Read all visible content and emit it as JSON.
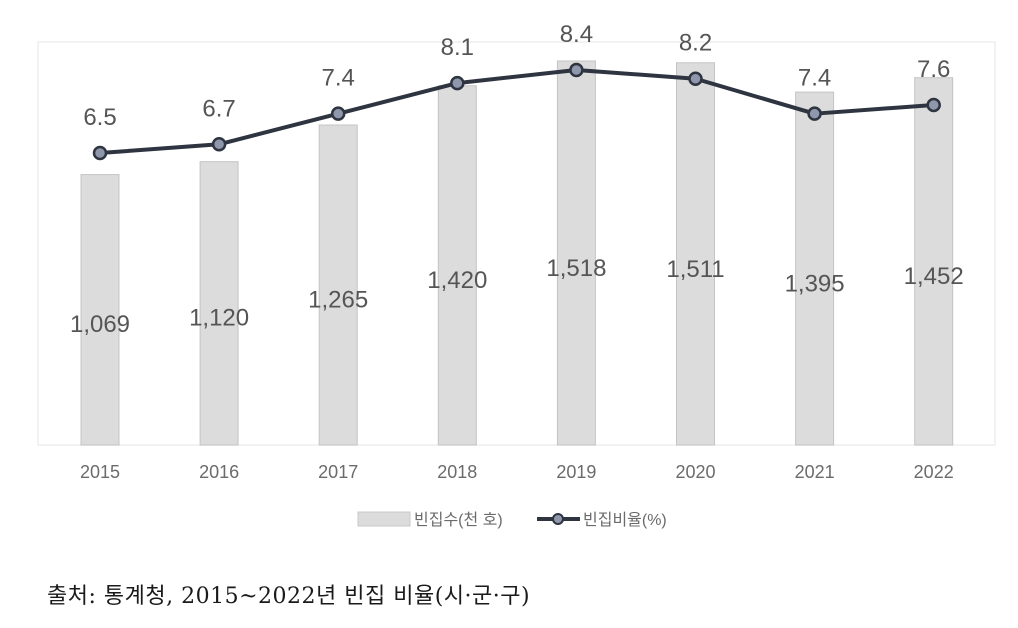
{
  "chart_data": {
    "type": "bar+line",
    "title": "",
    "categories": [
      "2015",
      "2016",
      "2017",
      "2018",
      "2019",
      "2020",
      "2021",
      "2022"
    ],
    "series": [
      {
        "name": "빈집수(천 호)",
        "type": "bar",
        "values": [
          1069,
          1120,
          1265,
          1420,
          1518,
          1511,
          1395,
          1452
        ],
        "labels": [
          "1,069",
          "1,120",
          "1,265",
          "1,420",
          "1,518",
          "1,511",
          "1,395",
          "1,452"
        ],
        "color": "#dcdcdc",
        "border_color": "#c4c4c4"
      },
      {
        "name": "빈집비율(%)",
        "type": "line",
        "values": [
          6.5,
          6.7,
          7.4,
          8.1,
          8.4,
          8.2,
          7.4,
          7.6
        ],
        "labels": [
          "6.5",
          "6.7",
          "7.4",
          "8.1",
          "8.4",
          "8.2",
          "7.4",
          "7.6"
        ],
        "color": "#2e3440",
        "marker_color": "#8e97ab"
      }
    ],
    "xlabel": "",
    "ylabel": "",
    "grid": false,
    "legend_position": "bottom",
    "colors": {
      "label_text": "#555555",
      "tick_text": "#6b6b6b",
      "plot_border": "#eeeeee"
    }
  },
  "legend": {
    "items": [
      {
        "label": "빈집수(천 호)",
        "type": "bar"
      },
      {
        "label": "빈집비율(%)",
        "type": "line"
      }
    ]
  },
  "source": {
    "text": "출처: 통계청, 2015~2022년 빈집 비율(시·군·구)"
  }
}
